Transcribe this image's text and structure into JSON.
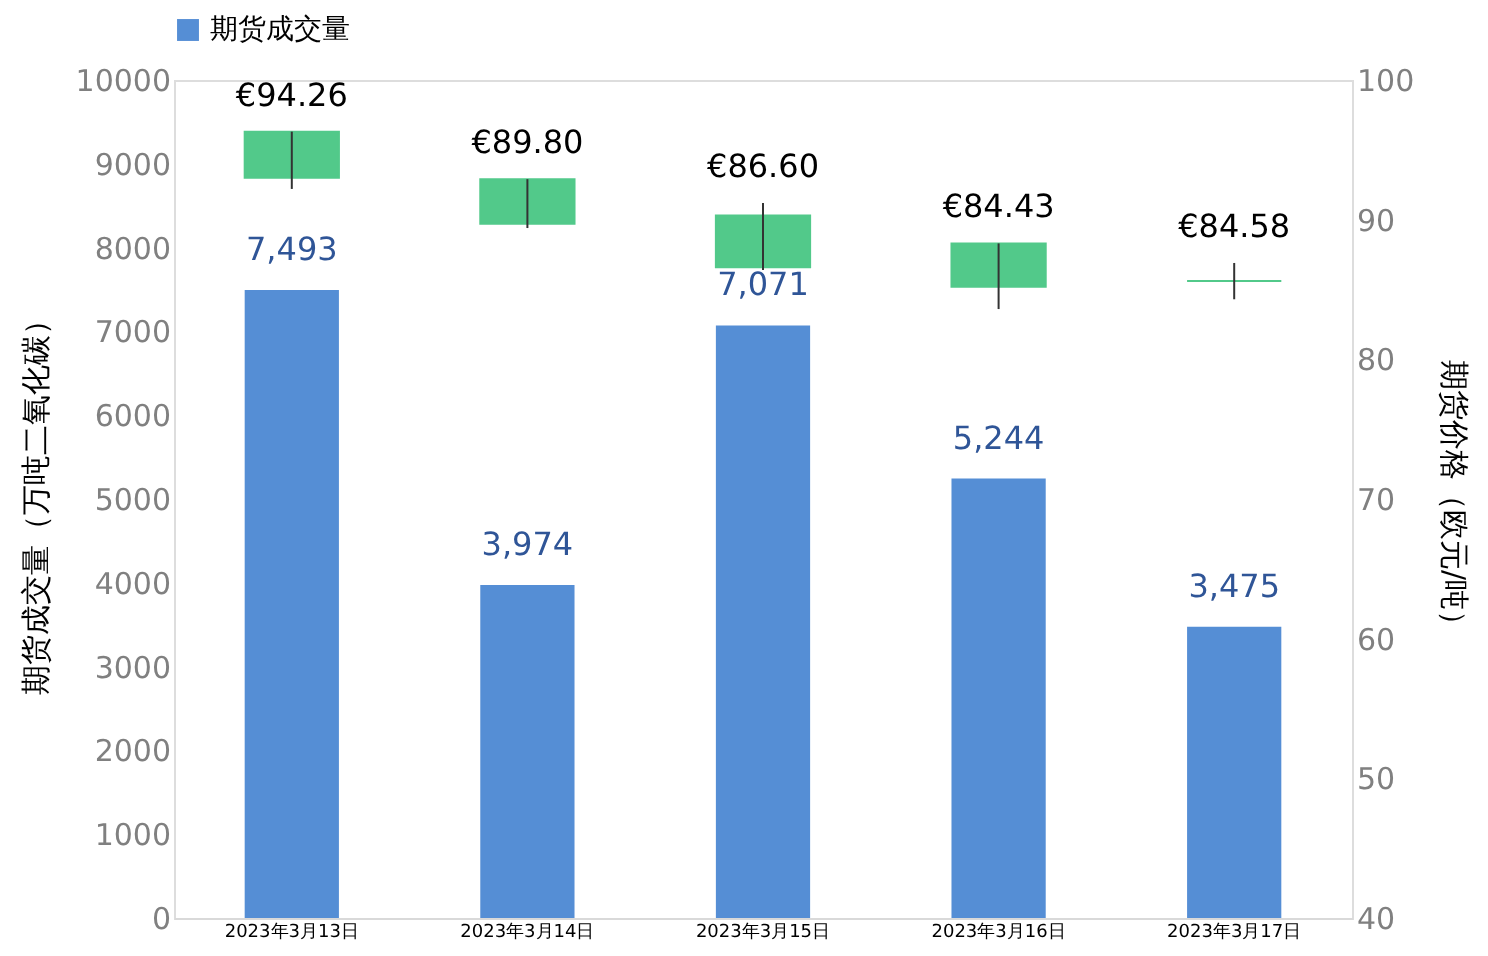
{
  "chart_data": {
    "type": "bar",
    "categories": [
      "2023年3月13日",
      "2023年3月14日",
      "2023年3月15日",
      "2023年3月16日",
      "2023年3月17日"
    ],
    "ylabel": "期货成交量（万吨二氧化碳）",
    "y2label": "期货价格（欧元/吨）",
    "ylim": [
      0,
      10000
    ],
    "yticks": [
      0,
      1000,
      2000,
      3000,
      4000,
      5000,
      6000,
      7000,
      8000,
      9000,
      10000
    ],
    "y2lim": [
      40,
      100
    ],
    "y2ticks": [
      40,
      50,
      60,
      70,
      80,
      90,
      100
    ],
    "legend": "top",
    "grid": false,
    "series": [
      {
        "name": "期货成交量",
        "color": "#558ed5",
        "values": [
          7493,
          3974,
          7071,
          5244,
          3475
        ],
        "value_labels": [
          "7,493",
          "3,974",
          "7,071",
          "5,244",
          "3,475"
        ]
      },
      {
        "type": "candlestick",
        "axis": "y2",
        "color": "#52c98a",
        "ohlc": [
          [
            96.3,
            96.3,
            92.2,
            93.0
          ],
          [
            92.9,
            92.9,
            89.4,
            89.7
          ],
          [
            90.3,
            91.2,
            86.4,
            86.6
          ],
          [
            88.3,
            88.3,
            83.6,
            85.2
          ],
          [
            85.6,
            86.9,
            84.3,
            85.6
          ]
        ],
        "value_labels": [
          "€94.26",
          "€89.80",
          "€86.60",
          "€84.43",
          "€84.58"
        ]
      }
    ]
  }
}
